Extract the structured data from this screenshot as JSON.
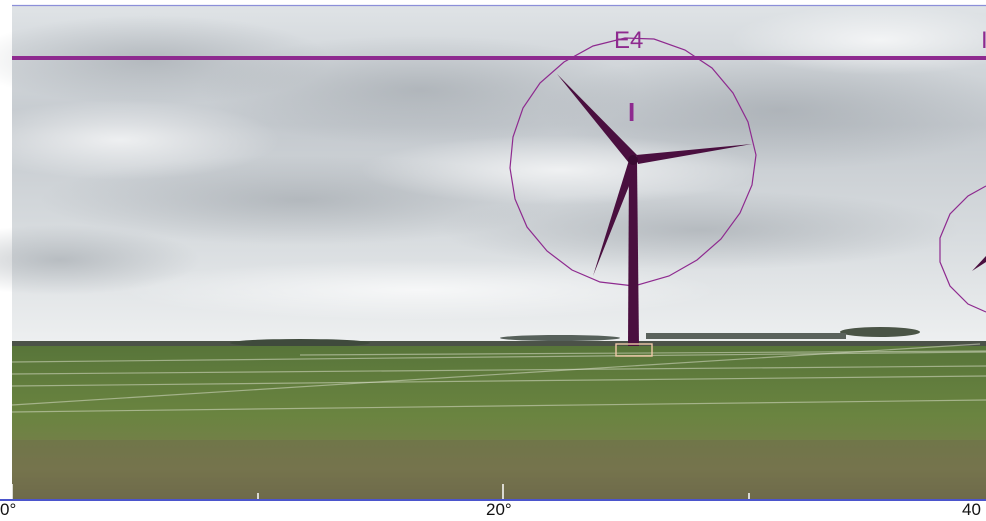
{
  "scene": {
    "description_free": true,
    "overlay_color": "#8e2a8f",
    "sky_colors": [
      "#e9ecee",
      "#c9cdd1",
      "#a6abb1"
    ],
    "field_colors": [
      "#5c7a35",
      "#6f8a3e",
      "#7f7a52"
    ]
  },
  "turbines": [
    {
      "label": "E4",
      "marker": "I"
    },
    {
      "label": "I"
    }
  ],
  "axis": {
    "labels": [
      "0°",
      "20°",
      "40"
    ]
  }
}
